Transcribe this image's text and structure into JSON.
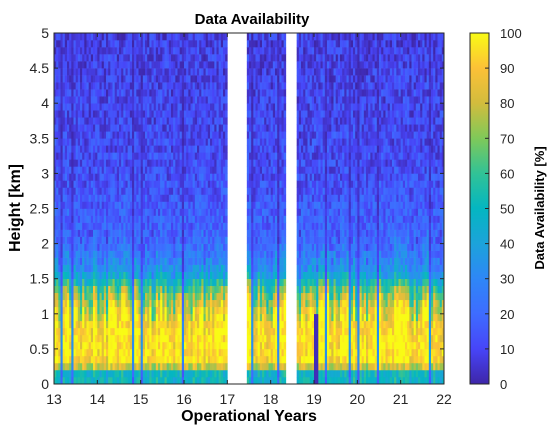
{
  "chart_data": {
    "type": "heatmap",
    "title": "Data Availability",
    "xlabel": "Operational Years",
    "ylabel": "Height [km]",
    "xlim": [
      13,
      22
    ],
    "ylim": [
      0,
      5
    ],
    "x_ticks": [
      13,
      14,
      15,
      16,
      17,
      18,
      19,
      20,
      21,
      22
    ],
    "x_tick_labels": [
      "13",
      "14",
      "15",
      "16",
      "17",
      "18",
      "19",
      "20",
      "21",
      "22"
    ],
    "y_ticks": [
      0,
      0.5,
      1,
      1.5,
      2,
      2.5,
      3,
      3.5,
      4,
      4.5,
      5
    ],
    "y_tick_labels": [
      "0",
      "0.5",
      "1",
      "1.5",
      "2",
      "2.5",
      "3",
      "3.5",
      "4",
      "4.5",
      "5"
    ],
    "colormap": "parula",
    "colorbar": {
      "label": "Data Availability [%]",
      "clim": [
        0,
        100
      ],
      "ticks": [
        0,
        10,
        20,
        30,
        40,
        50,
        60,
        70,
        80,
        90,
        100
      ],
      "tick_labels": [
        "0",
        "10",
        "20",
        "30",
        "40",
        "50",
        "60",
        "70",
        "80",
        "90",
        "100"
      ],
      "position": "right"
    },
    "data_gaps_years": [
      [
        17.0,
        17.45
      ],
      [
        18.35,
        18.6
      ]
    ],
    "availability_profile": [
      {
        "height_km": 0.15,
        "percent": 50
      },
      {
        "height_km": 0.3,
        "percent": 95
      },
      {
        "height_km": 0.6,
        "percent": 97
      },
      {
        "height_km": 1.0,
        "percent": 90
      },
      {
        "height_km": 1.3,
        "percent": 70
      },
      {
        "height_km": 1.6,
        "percent": 35
      },
      {
        "height_km": 2.0,
        "percent": 20
      },
      {
        "height_km": 3.0,
        "percent": 12
      },
      {
        "height_km": 4.0,
        "percent": 10
      },
      {
        "height_km": 5.0,
        "percent": 8
      }
    ],
    "grid": false
  }
}
